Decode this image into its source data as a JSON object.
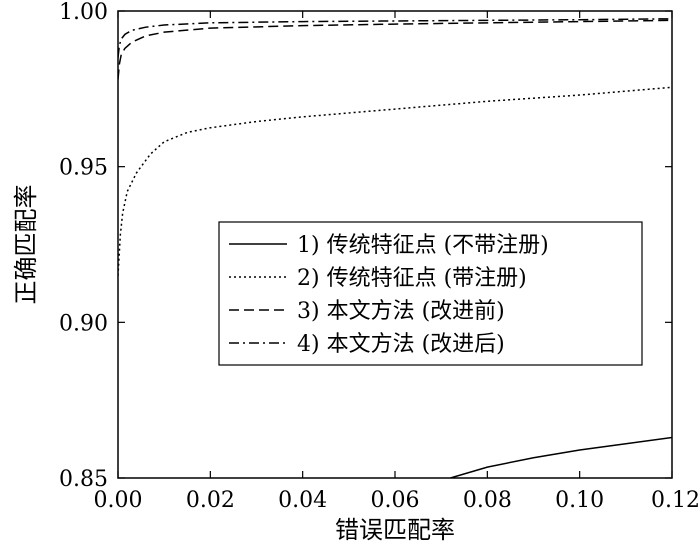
{
  "chart_data": {
    "type": "line",
    "xlabel": "错误匹配率",
    "ylabel": "正确匹配率",
    "xlim": [
      0,
      0.12
    ],
    "ylim": [
      0.85,
      1.0
    ],
    "x_ticks": [
      "0.00",
      "0.02",
      "0.04",
      "0.06",
      "0.08",
      "0.10",
      "0.12"
    ],
    "y_ticks": [
      "0.85",
      "0.90",
      "0.95",
      "1.00"
    ],
    "legend_position": "center-right",
    "series": [
      {
        "name": "1) 传统特征点 (不带注册)",
        "style": "solid",
        "color": "#000000",
        "x": [
          0.072,
          0.08,
          0.09,
          0.1,
          0.11,
          0.12
        ],
        "y": [
          0.85,
          0.8535,
          0.8565,
          0.859,
          0.861,
          0.863
        ]
      },
      {
        "name": "2) 传统特征点 (带注册)",
        "style": "dotted",
        "color": "#000000",
        "x": [
          0.0,
          0.0005,
          0.001,
          0.002,
          0.004,
          0.007,
          0.01,
          0.015,
          0.02,
          0.03,
          0.04,
          0.06,
          0.08,
          0.1,
          0.12
        ],
        "y": [
          0.915,
          0.928,
          0.935,
          0.942,
          0.948,
          0.954,
          0.958,
          0.961,
          0.9625,
          0.9645,
          0.966,
          0.9685,
          0.971,
          0.973,
          0.9755
        ]
      },
      {
        "name": "3) 本文方法 (改进前)",
        "style": "dashed",
        "color": "#000000",
        "x": [
          0.0,
          0.0003,
          0.0007,
          0.0015,
          0.003,
          0.006,
          0.01,
          0.02,
          0.04,
          0.06,
          0.08,
          0.1,
          0.12
        ],
        "y": [
          0.978,
          0.983,
          0.986,
          0.988,
          0.99,
          0.992,
          0.9932,
          0.9945,
          0.9953,
          0.9958,
          0.9962,
          0.9966,
          0.997
        ]
      },
      {
        "name": "4) 本文方法 (改进后)",
        "style": "dashdot",
        "color": "#000000",
        "x": [
          0.0,
          0.0003,
          0.0007,
          0.0015,
          0.003,
          0.006,
          0.01,
          0.02,
          0.04,
          0.06,
          0.08,
          0.1,
          0.12
        ],
        "y": [
          0.985,
          0.989,
          0.991,
          0.9925,
          0.9938,
          0.9948,
          0.9955,
          0.9962,
          0.9966,
          0.9968,
          0.997,
          0.9972,
          0.9975
        ]
      }
    ]
  }
}
